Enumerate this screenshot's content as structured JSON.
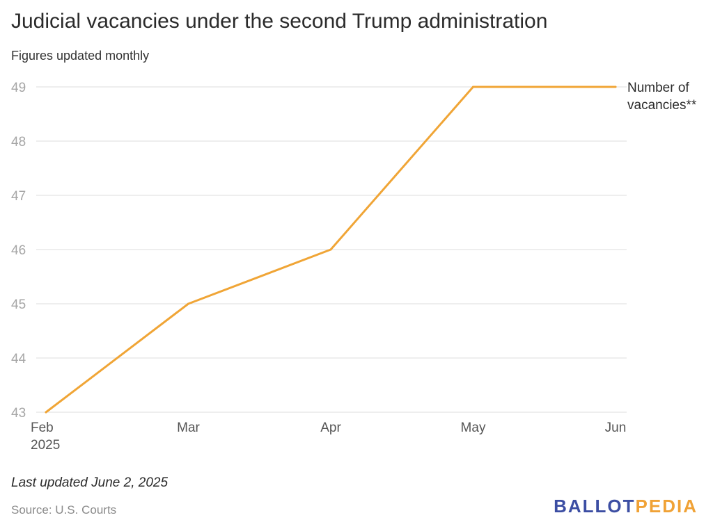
{
  "title": "Judicial vacancies under the second Trump administration",
  "subtitle": "Figures updated monthly",
  "footer": {
    "updated": "Last updated June 2, 2025",
    "source": "Source: U.S. Courts"
  },
  "logo": {
    "part1": "BALLOT",
    "part2": "PEDIA",
    "colors": {
      "part1": "#3c4ea3",
      "part2": "#f0a236"
    }
  },
  "chart_data": {
    "type": "line",
    "x": [
      "Feb",
      "Mar",
      "Apr",
      "May",
      "Jun"
    ],
    "x_sublabels": [
      "2025",
      "",
      "",
      "",
      ""
    ],
    "series": [
      {
        "name": "Number of vacancies**",
        "label_lines": [
          "Number of",
          "vacancies**"
        ],
        "color": "#f0a536",
        "values": [
          43,
          45,
          46,
          49,
          49
        ]
      }
    ],
    "yticks": [
      43,
      44,
      45,
      46,
      47,
      48,
      49
    ],
    "ylim": [
      43,
      49
    ],
    "grid": true,
    "legend": "direct label at line end",
    "colors": {
      "grid": "#dddddd",
      "tick_label": "#a6a6a6",
      "x_label": "#555555"
    }
  }
}
